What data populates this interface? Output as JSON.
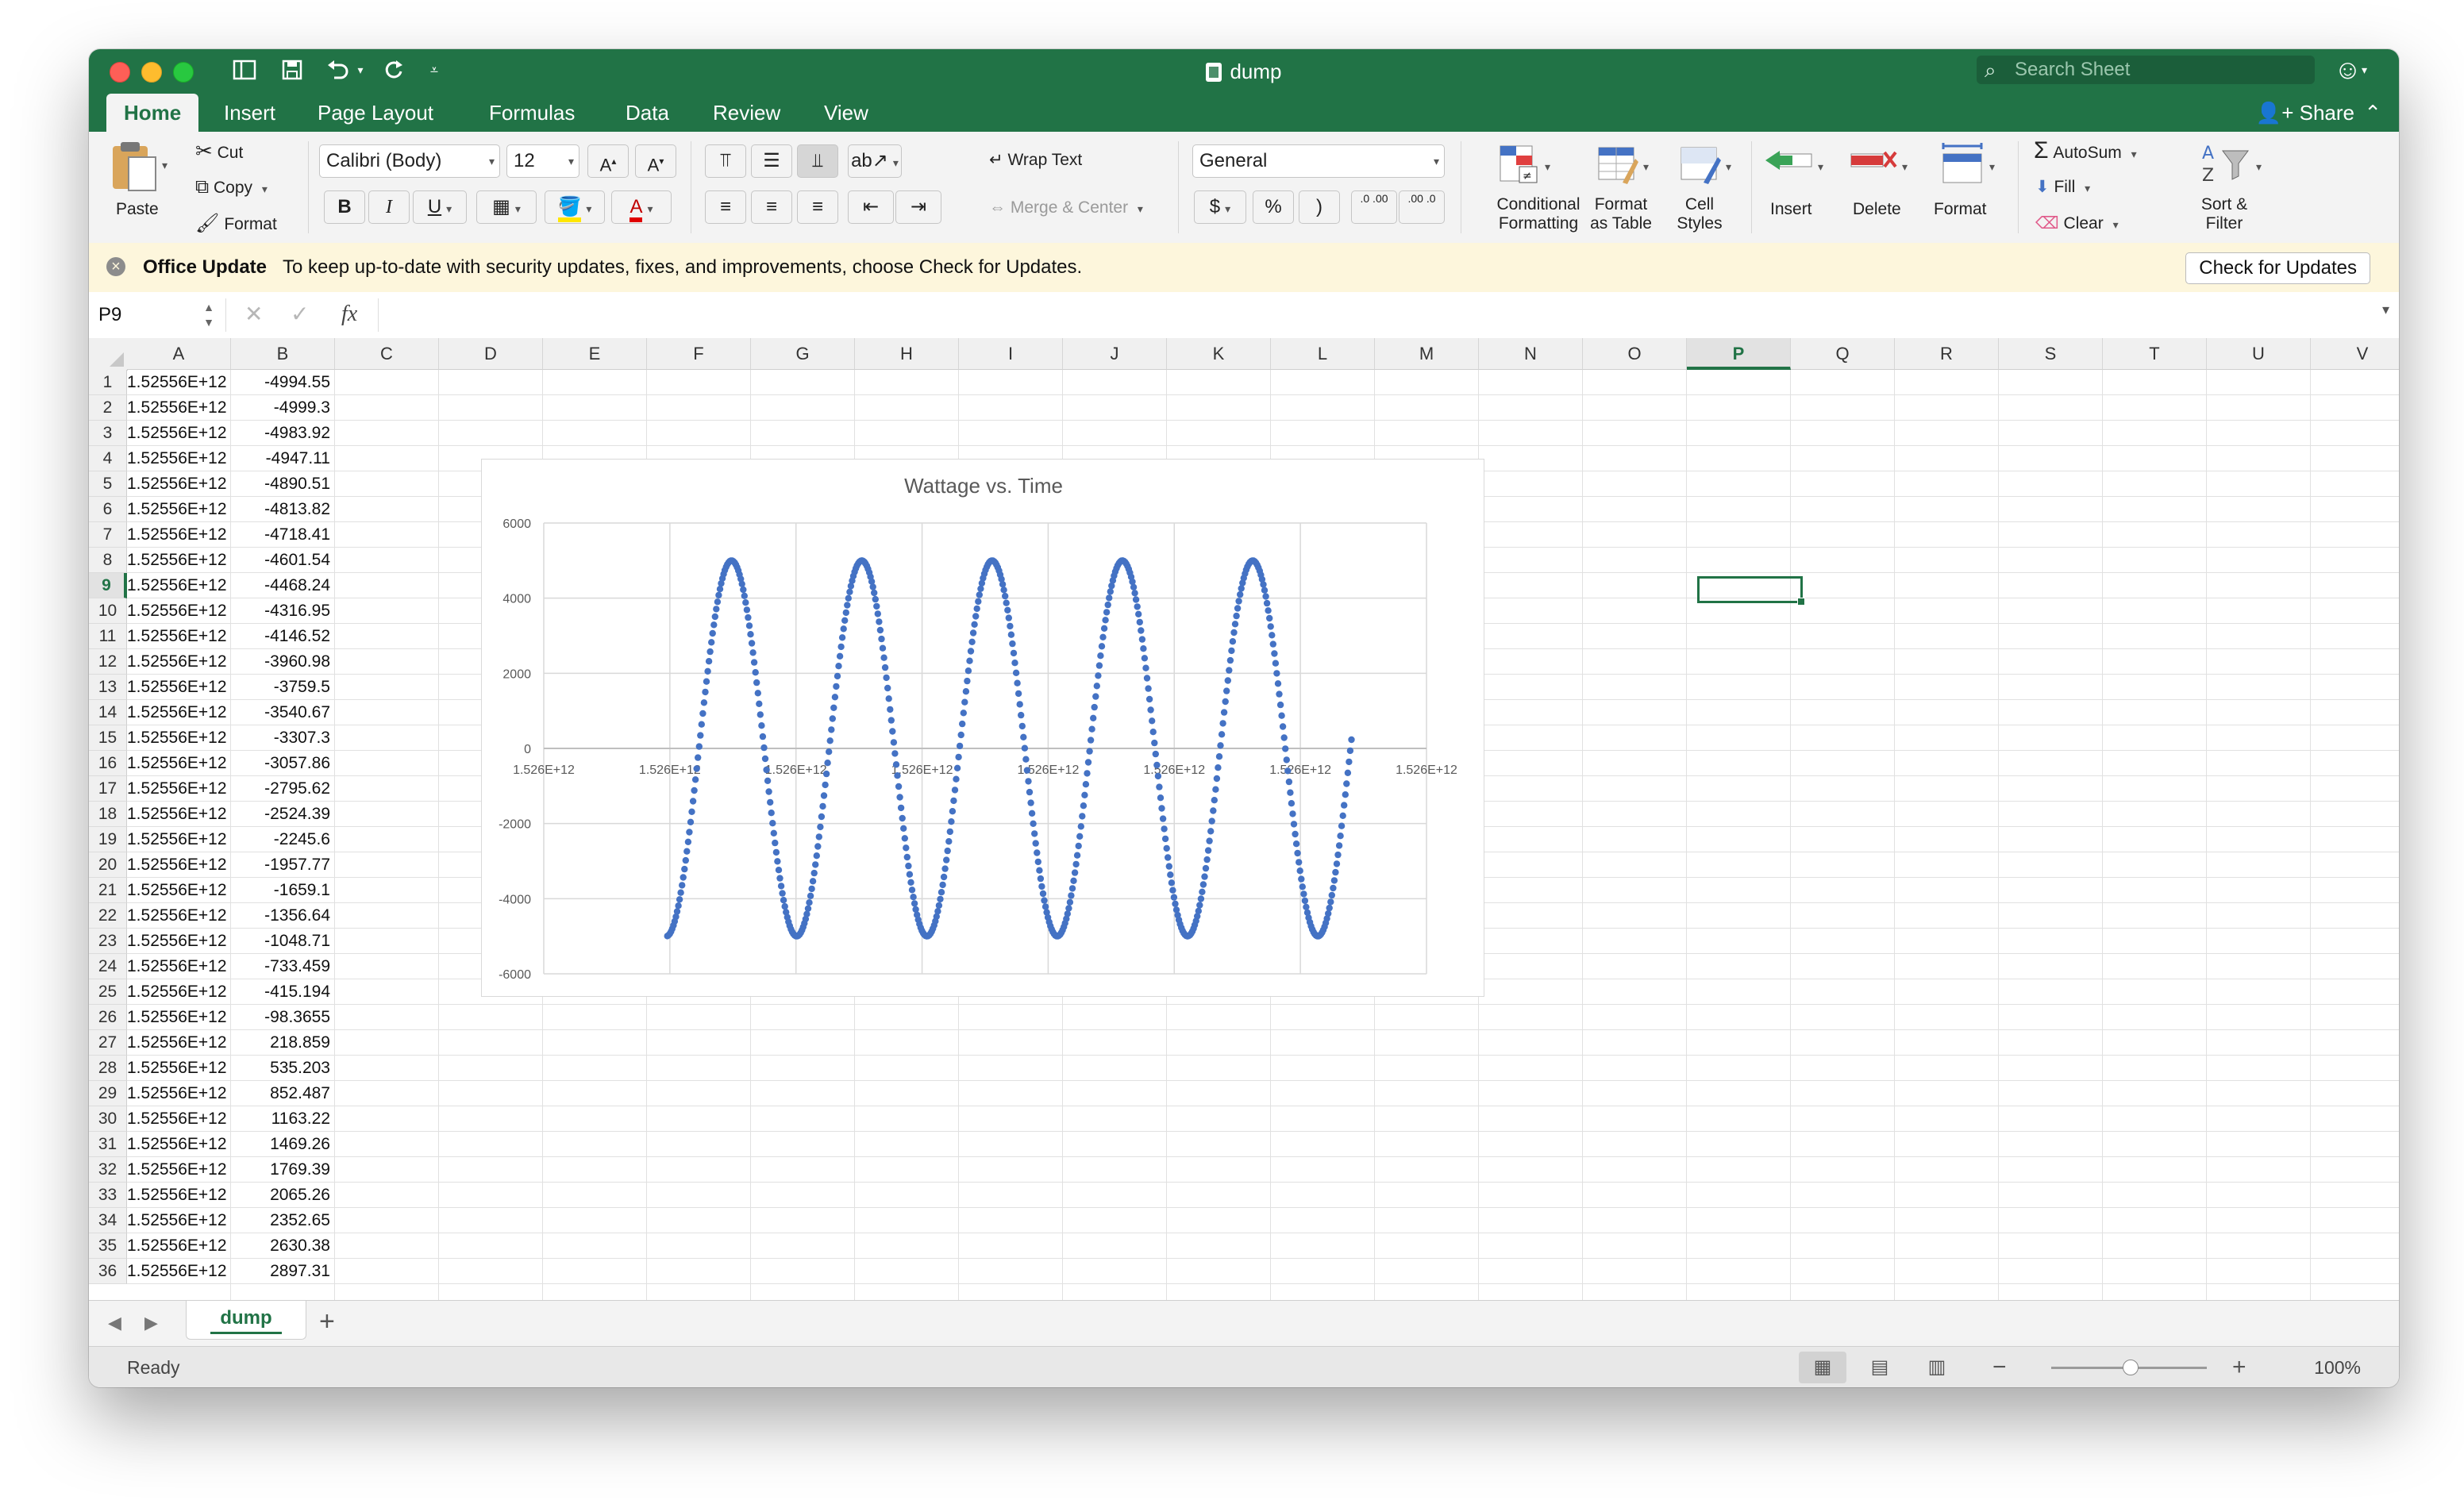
{
  "window": {
    "title": "dump"
  },
  "search": {
    "placeholder": "Search Sheet"
  },
  "tabs": [
    "Home",
    "Insert",
    "Page Layout",
    "Formulas",
    "Data",
    "Review",
    "View"
  ],
  "share_label": "Share",
  "ribbon": {
    "paste": "Paste",
    "cut": "Cut",
    "copy": "Copy",
    "format_painter": "Format",
    "font_name": "Calibri (Body)",
    "font_size": "12",
    "bold": "B",
    "italic": "I",
    "underline": "U",
    "wrap_text": "Wrap Text",
    "merge_center": "Merge & Center",
    "number_format": "General",
    "currency": "$",
    "percent": "%",
    "comma": ")",
    "conditional_formatting_1": "Conditional",
    "conditional_formatting_2": "Formatting",
    "format_as_table_1": "Format",
    "format_as_table_2": "as Table",
    "cell_styles_1": "Cell",
    "cell_styles_2": "Styles",
    "insert": "Insert",
    "delete": "Delete",
    "format": "Format",
    "autosum": "AutoSum",
    "fill": "Fill",
    "clear": "Clear",
    "sort_filter_1": "Sort &",
    "sort_filter_2": "Filter",
    "inc_decimal": ".0 .00",
    "dec_decimal": ".00 .0"
  },
  "update_bar": {
    "title": "Office Update",
    "message": "To keep up-to-date with security updates, fixes, and improvements, choose Check for Updates.",
    "button": "Check for Updates"
  },
  "formula_bar": {
    "name_box": "P9",
    "fx": "fx",
    "formula": ""
  },
  "columns": [
    "A",
    "B",
    "C",
    "D",
    "E",
    "F",
    "G",
    "H",
    "I",
    "J",
    "K",
    "L",
    "M",
    "N",
    "O",
    "P",
    "Q",
    "R",
    "S",
    "T",
    "U",
    "V"
  ],
  "selected_column": "P",
  "selected_row": 9,
  "rows": [
    {
      "n": "1",
      "a": "1.52556E+12",
      "b": "-4994.55"
    },
    {
      "n": "2",
      "a": "1.52556E+12",
      "b": "-4999.3"
    },
    {
      "n": "3",
      "a": "1.52556E+12",
      "b": "-4983.92"
    },
    {
      "n": "4",
      "a": "1.52556E+12",
      "b": "-4947.11"
    },
    {
      "n": "5",
      "a": "1.52556E+12",
      "b": "-4890.51"
    },
    {
      "n": "6",
      "a": "1.52556E+12",
      "b": "-4813.82"
    },
    {
      "n": "7",
      "a": "1.52556E+12",
      "b": "-4718.41"
    },
    {
      "n": "8",
      "a": "1.52556E+12",
      "b": "-4601.54"
    },
    {
      "n": "9",
      "a": "1.52556E+12",
      "b": "-4468.24"
    },
    {
      "n": "10",
      "a": "1.52556E+12",
      "b": "-4316.95"
    },
    {
      "n": "11",
      "a": "1.52556E+12",
      "b": "-4146.52"
    },
    {
      "n": "12",
      "a": "1.52556E+12",
      "b": "-3960.98"
    },
    {
      "n": "13",
      "a": "1.52556E+12",
      "b": "-3759.5"
    },
    {
      "n": "14",
      "a": "1.52556E+12",
      "b": "-3540.67"
    },
    {
      "n": "15",
      "a": "1.52556E+12",
      "b": "-3307.3"
    },
    {
      "n": "16",
      "a": "1.52556E+12",
      "b": "-3057.86"
    },
    {
      "n": "17",
      "a": "1.52556E+12",
      "b": "-2795.62"
    },
    {
      "n": "18",
      "a": "1.52556E+12",
      "b": "-2524.39"
    },
    {
      "n": "19",
      "a": "1.52556E+12",
      "b": "-2245.6"
    },
    {
      "n": "20",
      "a": "1.52556E+12",
      "b": "-1957.77"
    },
    {
      "n": "21",
      "a": "1.52556E+12",
      "b": "-1659.1"
    },
    {
      "n": "22",
      "a": "1.52556E+12",
      "b": "-1356.64"
    },
    {
      "n": "23",
      "a": "1.52556E+12",
      "b": "-1048.71"
    },
    {
      "n": "24",
      "a": "1.52556E+12",
      "b": "-733.459"
    },
    {
      "n": "25",
      "a": "1.52556E+12",
      "b": "-415.194"
    },
    {
      "n": "26",
      "a": "1.52556E+12",
      "b": "-98.3655"
    },
    {
      "n": "27",
      "a": "1.52556E+12",
      "b": "218.859"
    },
    {
      "n": "28",
      "a": "1.52556E+12",
      "b": "535.203"
    },
    {
      "n": "29",
      "a": "1.52556E+12",
      "b": "852.487"
    },
    {
      "n": "30",
      "a": "1.52556E+12",
      "b": "1163.22"
    },
    {
      "n": "31",
      "a": "1.52556E+12",
      "b": "1469.26"
    },
    {
      "n": "32",
      "a": "1.52556E+12",
      "b": "1769.39"
    },
    {
      "n": "33",
      "a": "1.52556E+12",
      "b": "2065.26"
    },
    {
      "n": "34",
      "a": "1.52556E+12",
      "b": "2352.65"
    },
    {
      "n": "35",
      "a": "1.52556E+12",
      "b": "2630.38"
    },
    {
      "n": "36",
      "a": "1.52556E+12",
      "b": "2897.31"
    }
  ],
  "chart_data": {
    "type": "scatter",
    "title": "Wattage vs. Time",
    "xlabel": "",
    "ylabel": "",
    "ylim": [
      -6000,
      6000
    ],
    "y_ticks": [
      "6000",
      "4000",
      "2000",
      "0",
      "-2000",
      "-4000",
      "-6000"
    ],
    "x_tick_labels": [
      "1.526E+12",
      "1.526E+12",
      "1.526E+12",
      "1.526E+12",
      "1.526E+12",
      "1.526E+12",
      "1.526E+12",
      "1.526E+12"
    ],
    "grid": true,
    "series": [
      {
        "color": "#4472c4",
        "amplitude": 5000,
        "cycles": 5.25,
        "x_start_fraction": 0.14,
        "x_end_fraction": 0.915,
        "first_value": -4994.55
      }
    ]
  },
  "sheet_tabs": [
    "dump"
  ],
  "status": {
    "text": "Ready",
    "zoom": "100%"
  },
  "colors": {
    "accent": "#217346",
    "series": "#4472c4"
  }
}
